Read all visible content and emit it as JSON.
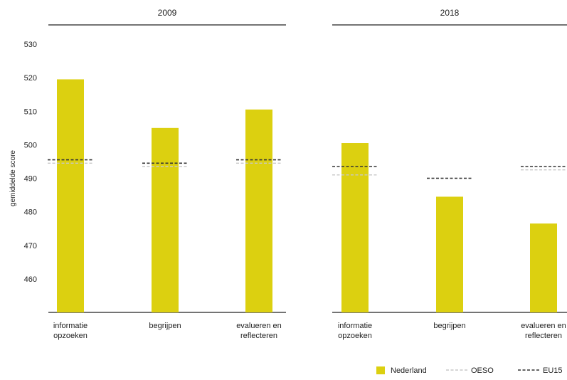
{
  "chart_data": {
    "type": "bar",
    "ylabel": "gemiddelde score",
    "ylim": [
      450,
      530
    ],
    "yticks": [
      460,
      470,
      480,
      490,
      500,
      510,
      520,
      530
    ],
    "grid": false,
    "legend_position": "bottom-right",
    "categories": [
      [
        "informatie",
        "opzoeken"
      ],
      [
        "begrijpen"
      ],
      [
        "evalueren en",
        "reflecteren"
      ]
    ],
    "panels": [
      {
        "title": "2009",
        "series": [
          {
            "name": "Nederland",
            "type": "bar",
            "color": "#dcd010",
            "values": [
              519.5,
              505,
              510.5
            ]
          },
          {
            "name": "OESO",
            "type": "reference-line",
            "color": "#c8c8c8",
            "values": [
              494.5,
              493.5,
              494.5
            ]
          },
          {
            "name": "EU15",
            "type": "reference-line",
            "color": "#333333",
            "values": [
              495.5,
              494.5,
              495.5
            ]
          }
        ]
      },
      {
        "title": "2018",
        "series": [
          {
            "name": "Nederland",
            "type": "bar",
            "color": "#dcd010",
            "values": [
              500.5,
              484.5,
              476.5
            ]
          },
          {
            "name": "OESO",
            "type": "reference-line",
            "color": "#c8c8c8",
            "values": [
              491,
              490,
              492.5
            ]
          },
          {
            "name": "EU15",
            "type": "reference-line",
            "color": "#333333",
            "values": [
              493.5,
              490,
              493.5
            ]
          }
        ]
      }
    ],
    "legend": [
      {
        "label": "Nederland",
        "kind": "swatch",
        "color": "#dcd010"
      },
      {
        "label": "OESO",
        "kind": "dashed",
        "color": "#c8c8c8"
      },
      {
        "label": "EU15",
        "kind": "dashed",
        "color": "#333333"
      }
    ]
  }
}
